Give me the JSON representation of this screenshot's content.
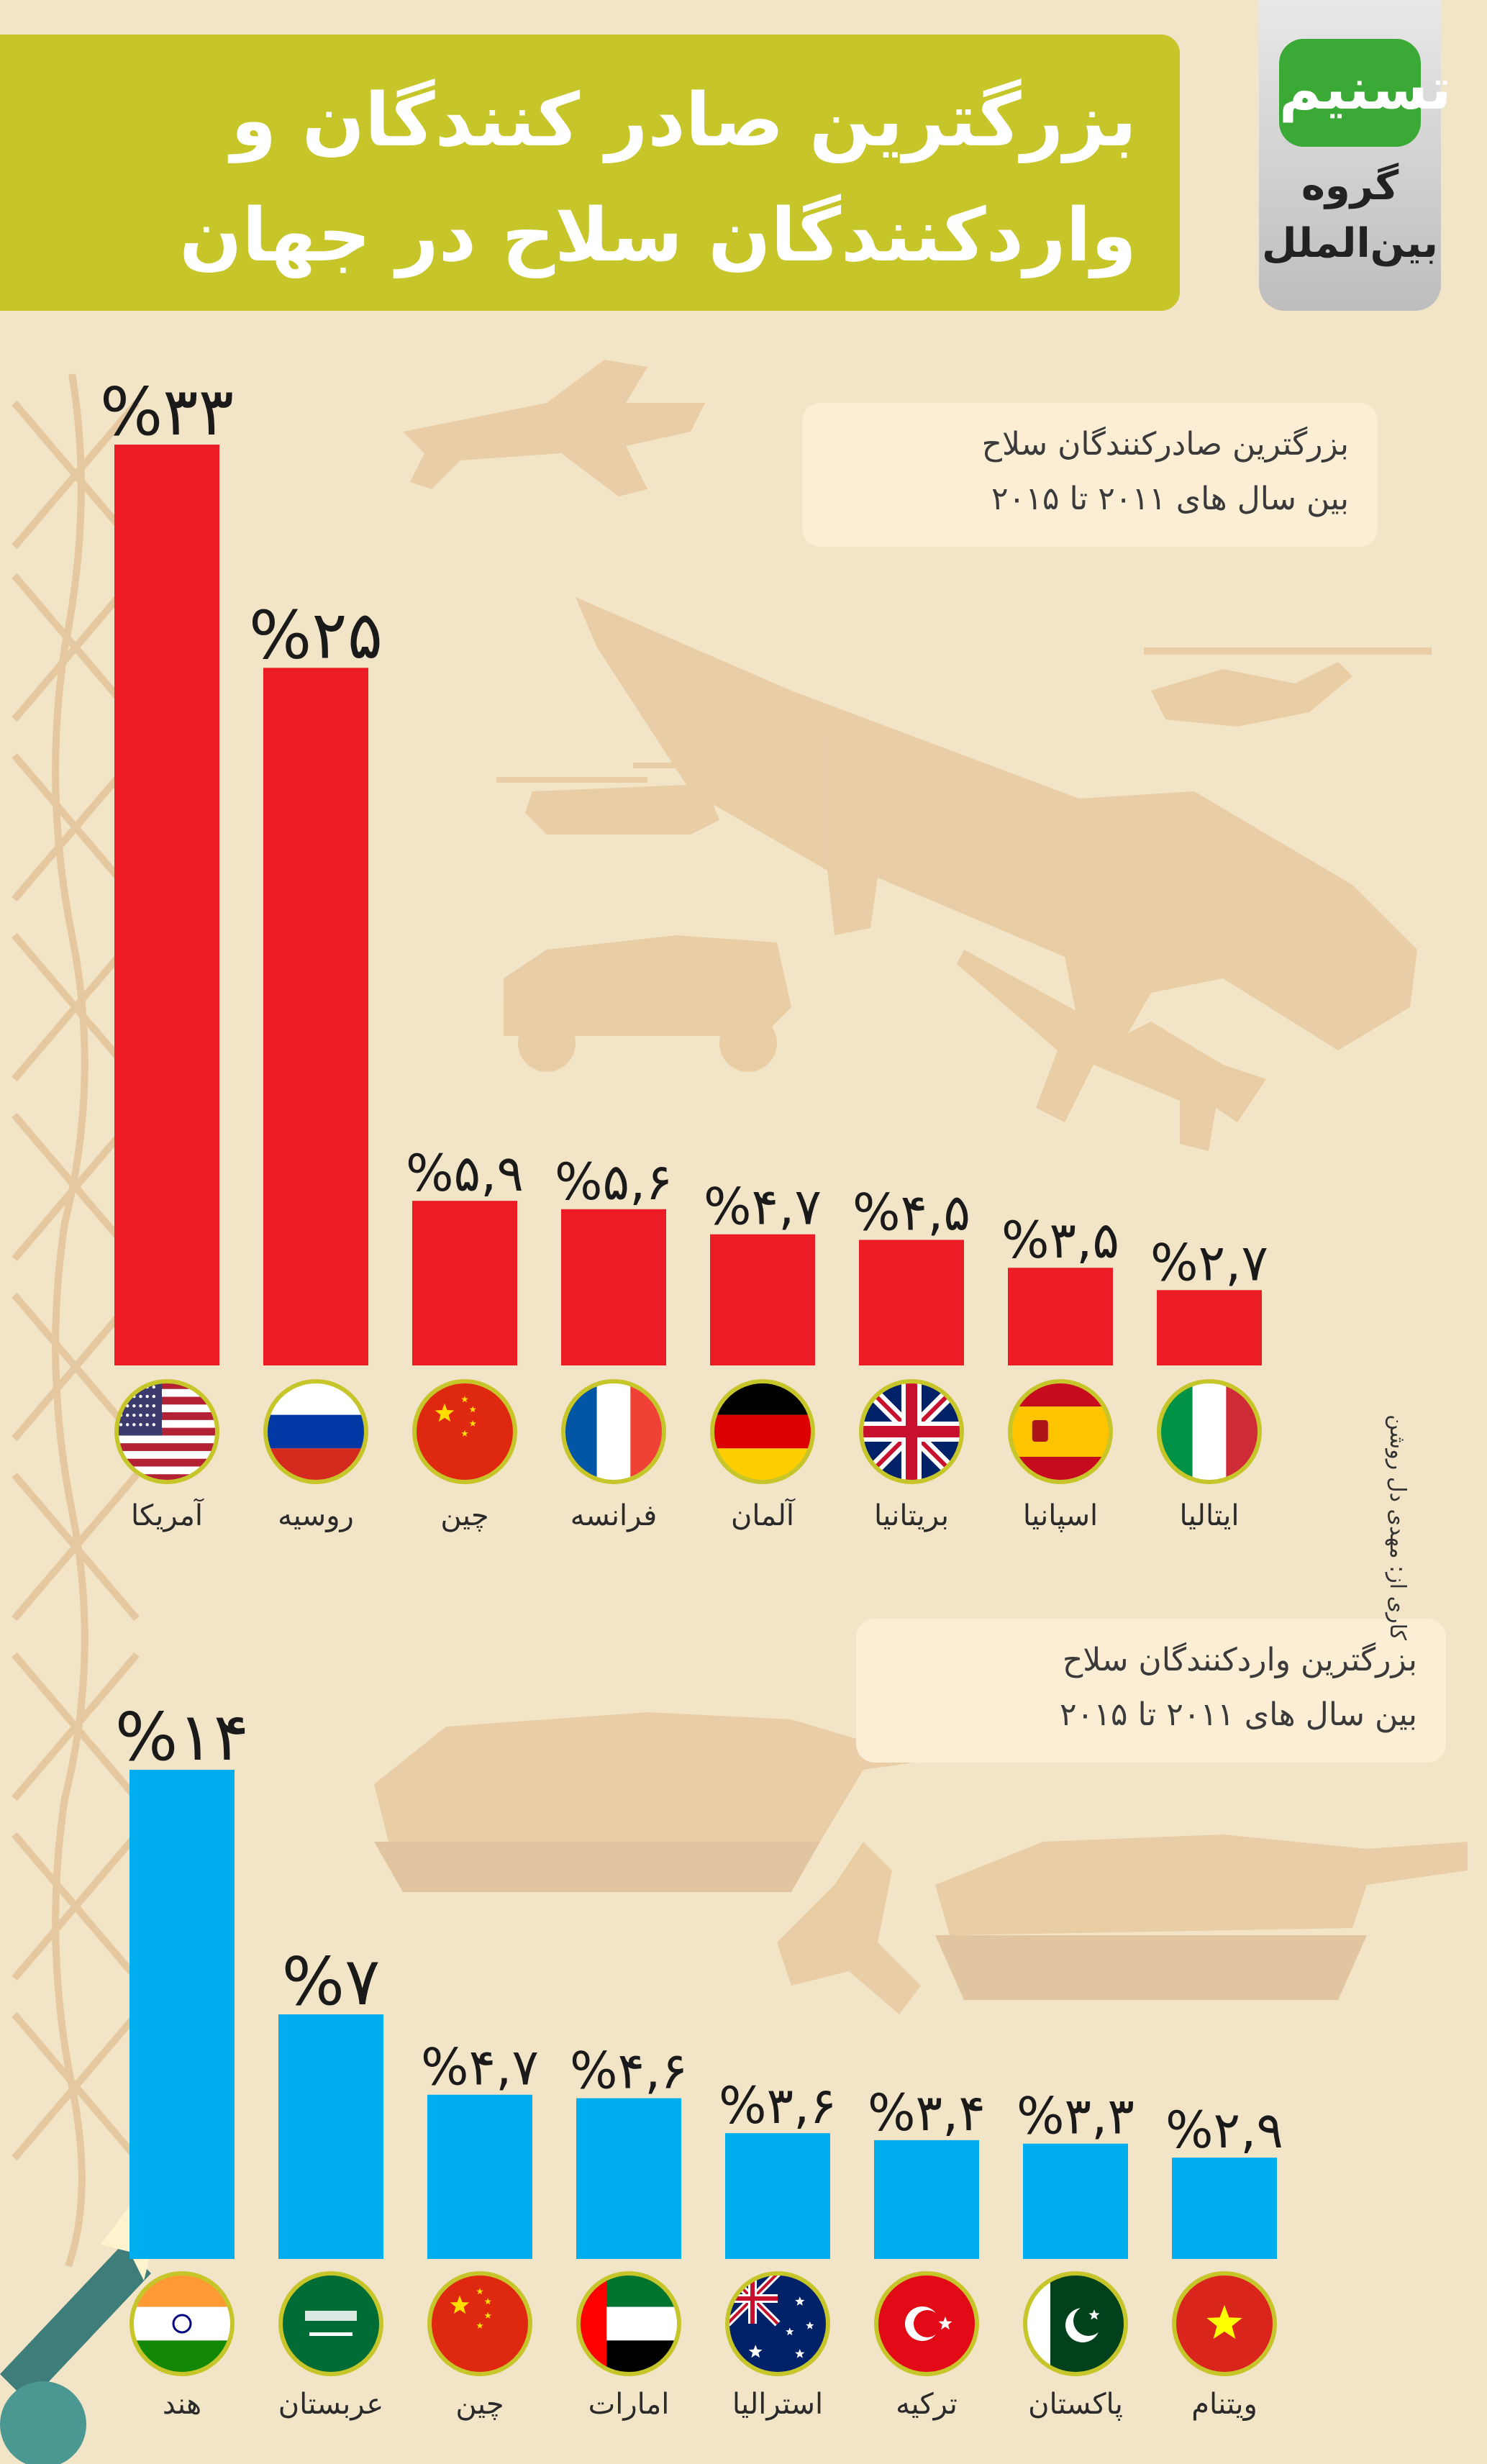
{
  "header": {
    "title_line1": "بزرگترین صادر کنندگان و",
    "title_line2": "واردکنندگان سلاح در جهان"
  },
  "logo": {
    "badge_text": "تسنیم",
    "group_line1": "گروه",
    "group_line2": "بین‌الملل"
  },
  "credit": "کاری از: مهدی دل روشن",
  "colors": {
    "title_bg": "#c6c529",
    "exporter_bar": "#ec1c24",
    "importer_bar": "#00aeef",
    "background": "#f2e4c6",
    "flag_ring": "#c6c529"
  },
  "chart_data": [
    {
      "type": "bar",
      "title_line1": "بزرگترین صادرکنندگان سلاح",
      "title_line2": "بین سال های ۲۰۱۱ تا ۲۰۱۵",
      "categories": [
        "آمریکا",
        "روسیه",
        "چین",
        "فرانسه",
        "آلمان",
        "بریتانیا",
        "اسپانیا",
        "ایتالیا"
      ],
      "flags": [
        "usa-flag",
        "russia-flag",
        "china-flag",
        "france-flag",
        "germany-flag",
        "uk-flag",
        "spain-flag",
        "italy-flag"
      ],
      "values": [
        33,
        25,
        5.9,
        5.6,
        4.7,
        4.5,
        3.5,
        2.7
      ],
      "value_labels": [
        "%۳۳",
        "%۲۵",
        "%۵,۹",
        "%۵,۶",
        "%۴,۷",
        "%۴,۵",
        "%۳,۵",
        "%۲,۷"
      ],
      "color": "#ec1c24"
    },
    {
      "type": "bar",
      "title_line1": "بزرگترین واردکنندگان سلاح",
      "title_line2": "بین سال های ۲۰۱۱ تا ۲۰۱۵",
      "categories": [
        "هند",
        "عربستان",
        "چین",
        "امارات",
        "استرالیا",
        "ترکیه",
        "پاکستان",
        "ویتنام"
      ],
      "flags": [
        "india-flag",
        "saudi-flag",
        "china-flag",
        "uae-flag",
        "australia-flag",
        "turkey-flag",
        "pakistan-flag",
        "vietnam-flag"
      ],
      "values": [
        14,
        7,
        4.7,
        4.6,
        3.6,
        3.4,
        3.3,
        2.9
      ],
      "value_labels": [
        "%۱۴",
        "%۷",
        "%۴,۷",
        "%۴,۶",
        "%۳,۶",
        "%۳,۴",
        "%۳,۳",
        "%۲,۹"
      ],
      "color": "#00aeef"
    }
  ]
}
